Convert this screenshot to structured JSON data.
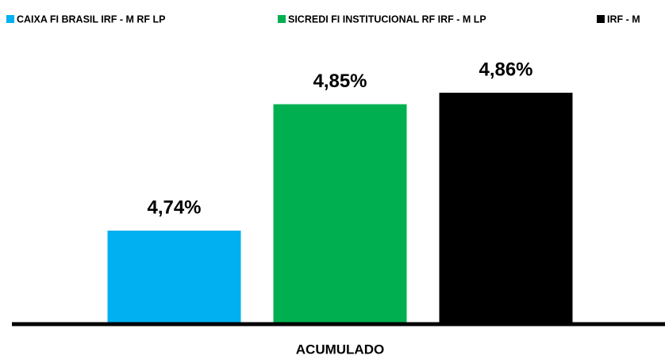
{
  "chart_data": {
    "type": "bar",
    "categories": [
      "ACUMULADO"
    ],
    "series": [
      {
        "name": "CAIXA FI BRASIL IRF - M RF LP",
        "color": "#00b0f0",
        "values": [
          4.74
        ],
        "value_labels": [
          "4,74%"
        ]
      },
      {
        "name": "SICREDI FI INSTITUCIONAL RF IRF - M LP",
        "color": "#00b050",
        "values": [
          4.85
        ],
        "value_labels": [
          "4,85%"
        ]
      },
      {
        "name": "IRF - M",
        "color": "#000000",
        "values": [
          4.86
        ],
        "value_labels": [
          "4,86%"
        ]
      }
    ],
    "ylim": [
      4.66,
      4.88
    ],
    "legend": "top"
  }
}
